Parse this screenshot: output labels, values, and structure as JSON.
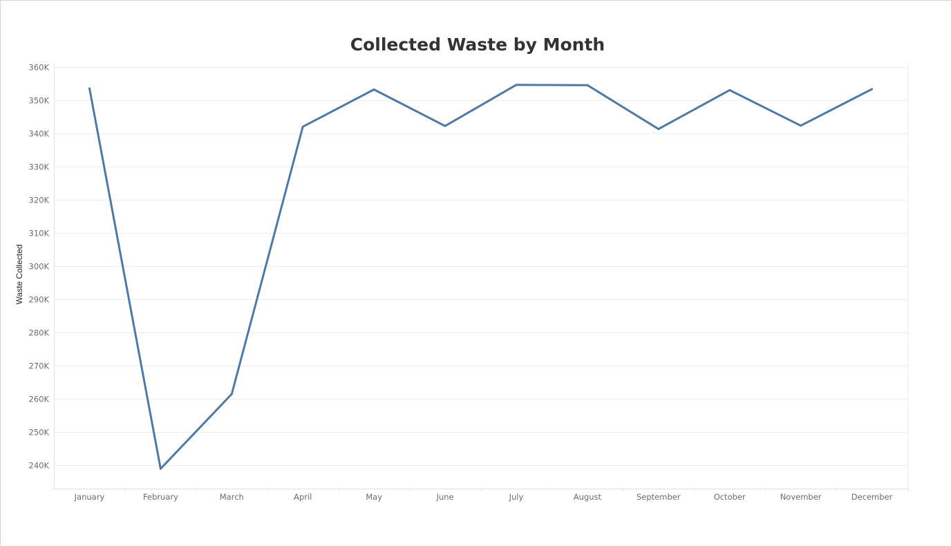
{
  "chart_data": {
    "type": "line",
    "title": "Collected Waste by Month",
    "xlabel": "",
    "ylabel": "Waste Collected",
    "categories": [
      "January",
      "February",
      "March",
      "April",
      "May",
      "June",
      "July",
      "August",
      "September",
      "October",
      "November",
      "December"
    ],
    "series": [
      {
        "values": [
          353500,
          239000,
          261500,
          342000,
          353200,
          342200,
          354600,
          354500,
          341300,
          353000,
          342300,
          353300
        ]
      }
    ],
    "ylim": [
      233000,
      361000
    ],
    "yticks": [
      240000,
      250000,
      260000,
      270000,
      280000,
      290000,
      300000,
      310000,
      320000,
      330000,
      340000,
      350000,
      360000
    ],
    "ytick_labels": [
      "240K",
      "250K",
      "260K",
      "270K",
      "280K",
      "290K",
      "300K",
      "310K",
      "320K",
      "330K",
      "340K",
      "350K",
      "360K"
    ],
    "grid": true,
    "legend": "none",
    "colors": {
      "line": "#4e79a7",
      "title": "#333333",
      "tick_text": "#6b6b6b",
      "grid": "#eeeeee"
    }
  }
}
